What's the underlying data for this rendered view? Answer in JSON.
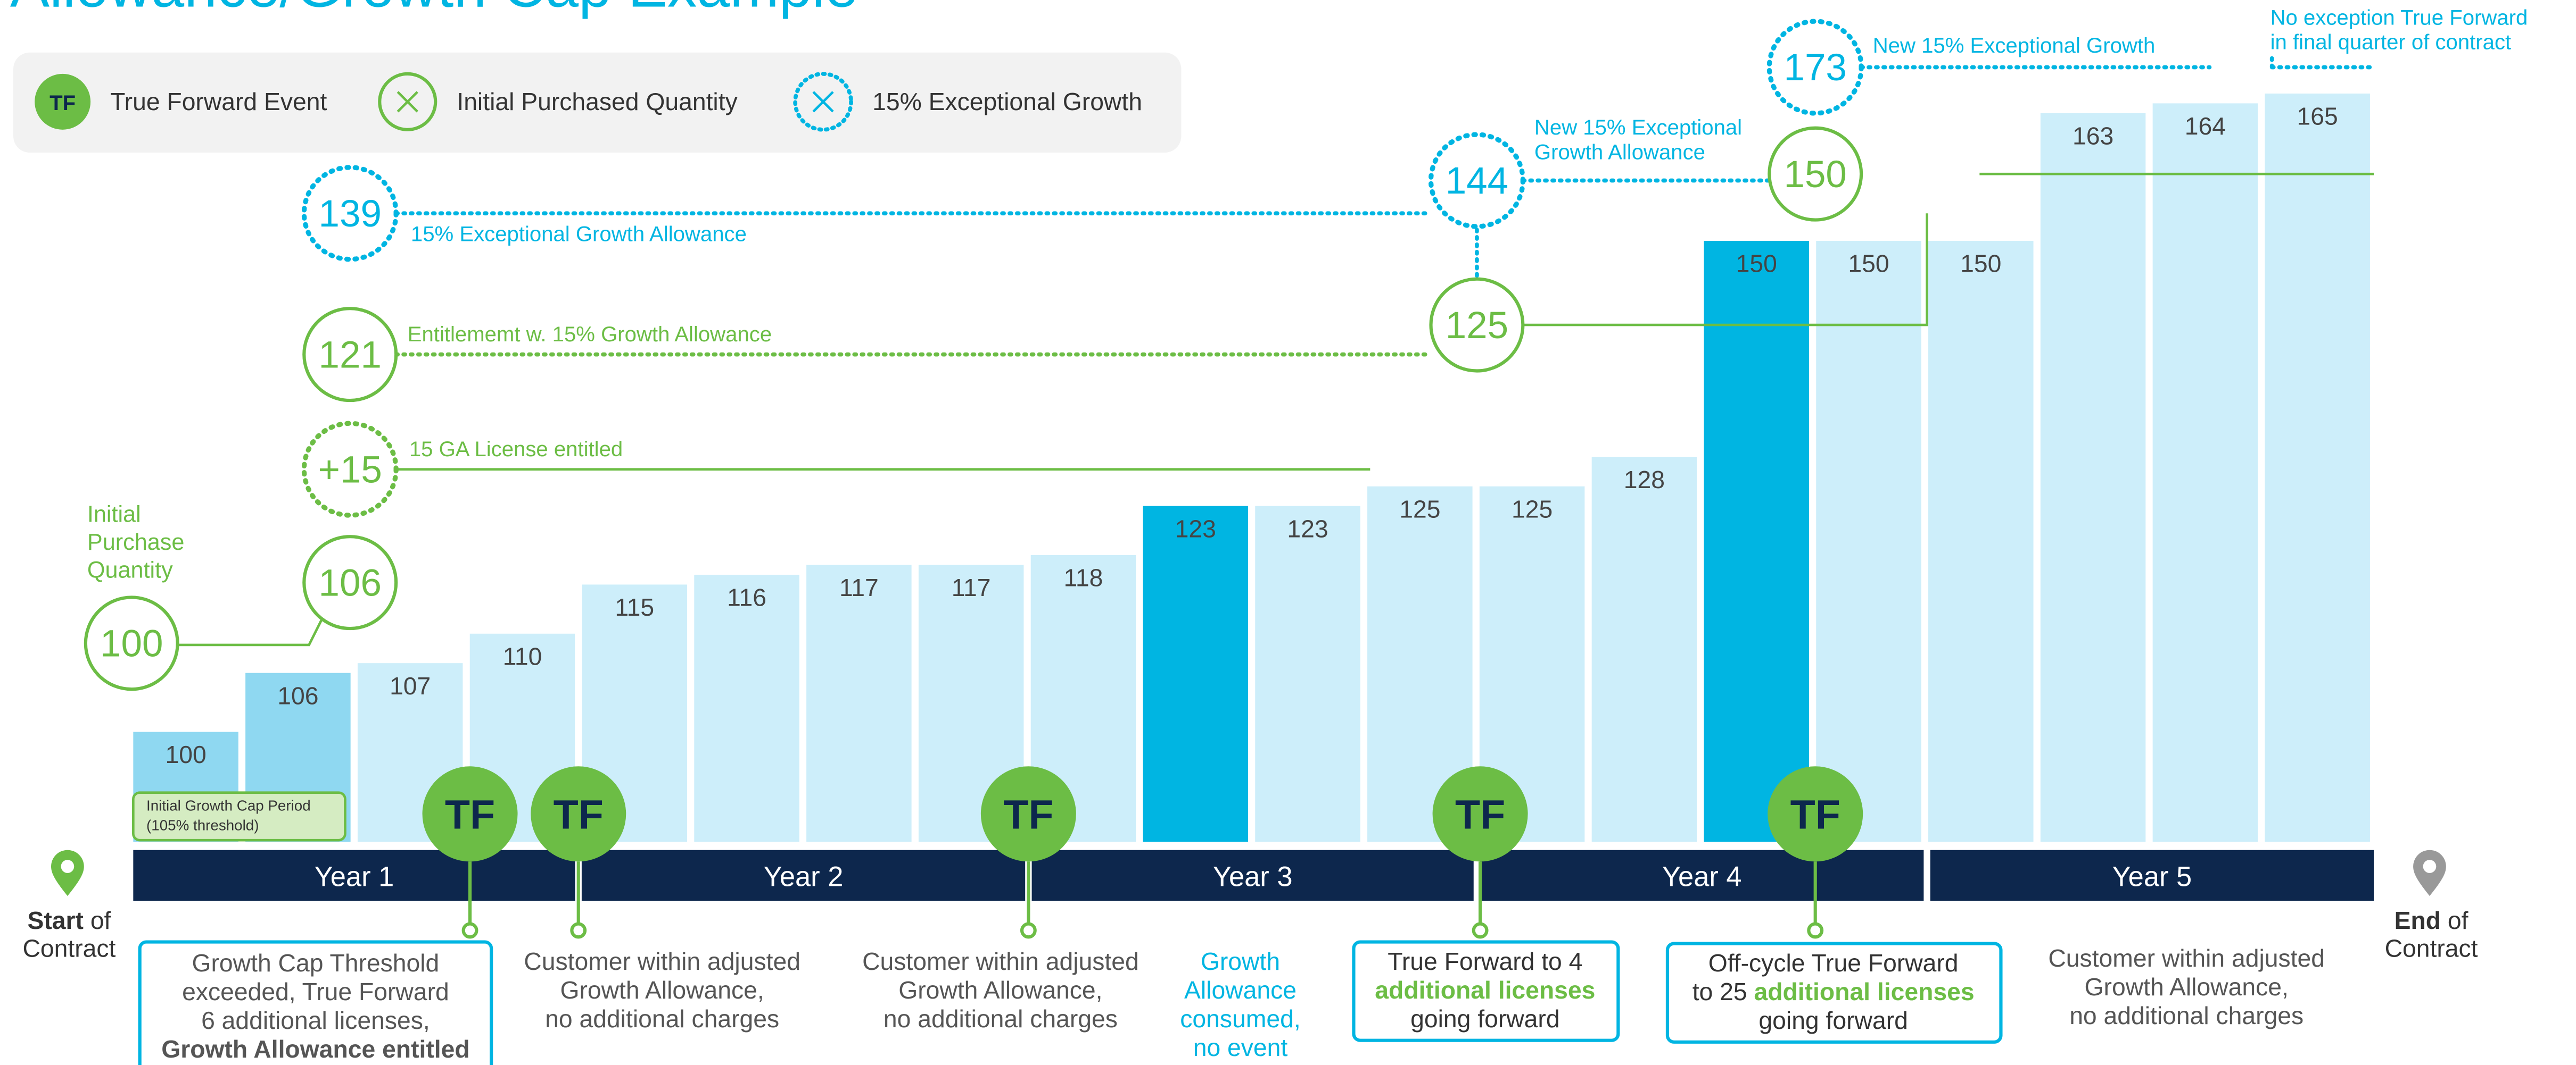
{
  "chart_data": {
    "type": "bar",
    "title": "Allowance/Growth Cap Example",
    "values": [
      100,
      106,
      107,
      110,
      115,
      116,
      117,
      117,
      118,
      123,
      123,
      125,
      125,
      128,
      150,
      150,
      150,
      163,
      164,
      165
    ],
    "colors": [
      "#8fd8f1",
      "#8fd8f1",
      "#cdeefa",
      "#cdeefa",
      "#cdeefa",
      "#cdeefa",
      "#cdeefa",
      "#cdeefa",
      "#cdeefa",
      "#00b5e2",
      "#cdeefa",
      "#cdeefa",
      "#cdeefa",
      "#cdeefa",
      "#00b5e2",
      "#cdeefa",
      "#cdeefa",
      "#cdeefa",
      "#cdeefa",
      "#cdeefa"
    ],
    "legend": [
      "True Forward Event",
      "Initial Purchased Quantity",
      "15% Exceptional Growth"
    ],
    "legend_icon": "TF",
    "years": [
      "Year 1",
      "Year 2",
      "Year 3",
      "Year 4",
      "Year 5"
    ],
    "tf_events": [
      "TF",
      "TF",
      "TF",
      "TF",
      "TF"
    ],
    "growth_cap_box": [
      "Initial Growth Cap Period",
      "(105% threshold)"
    ],
    "circles": [
      100,
      106,
      "+15",
      121,
      139,
      144,
      125,
      150,
      173
    ],
    "callouts": [
      [
        "Initial",
        "Purchase",
        "Quantity"
      ],
      [
        "15 GA License entitled"
      ],
      [
        "Entitlememt w. 15% Growth Allowance"
      ],
      [
        "15% Exceptional Growth Allowance"
      ],
      [
        "New 15% Exceptional",
        "Growth Allowance"
      ],
      [
        "New 15% Exceptional Growth"
      ],
      [
        "No exception True Forward",
        "in final quarter of contract"
      ]
    ],
    "start": {
      "bold": "Start",
      "text": " of",
      "line2": "Contract"
    },
    "end": {
      "bold": "End",
      "text": " of",
      "line2": "Contract"
    },
    "notes": [
      [
        [
          {
            "text": "Growth Cap Threshold"
          }
        ],
        [
          {
            "text": "exceeded, True Forward"
          }
        ],
        [
          {
            "text": "6 additional licenses,"
          }
        ],
        [
          {
            "text": "Growth Allowance entitled",
            "bold": true
          }
        ]
      ],
      [
        [
          {
            "text": "Customer within adjusted"
          }
        ],
        [
          {
            "text": "Growth Allowance,"
          }
        ],
        [
          {
            "text": "no additional charges"
          }
        ]
      ],
      [
        [
          {
            "text": "Customer within adjusted"
          }
        ],
        [
          {
            "text": "Growth Allowance,"
          }
        ],
        [
          {
            "text": "no additional charges"
          }
        ]
      ],
      [
        [
          {
            "text": "Growth"
          }
        ],
        [
          {
            "text": "Allowance"
          }
        ],
        [
          {
            "text": "consumed,"
          }
        ],
        [
          {
            "text": "no event"
          }
        ]
      ],
      [
        [
          {
            "text": "True Forward to 4"
          }
        ],
        [
          {
            "text": "additional licenses",
            "bold": true
          }
        ],
        [
          {
            "text": "going forward"
          }
        ]
      ],
      [
        [
          {
            "text": "Off-cycle True Forward"
          }
        ],
        [
          {
            "text": "to 25 "
          },
          {
            "text": "additional licenses",
            "bold": true
          }
        ],
        [
          {
            "text": "going forward"
          }
        ]
      ],
      [
        [
          {
            "text": "Customer within adjusted"
          }
        ],
        [
          {
            "text": "Growth Allowance,"
          }
        ],
        [
          {
            "text": "no additional charges"
          }
        ]
      ]
    ]
  }
}
